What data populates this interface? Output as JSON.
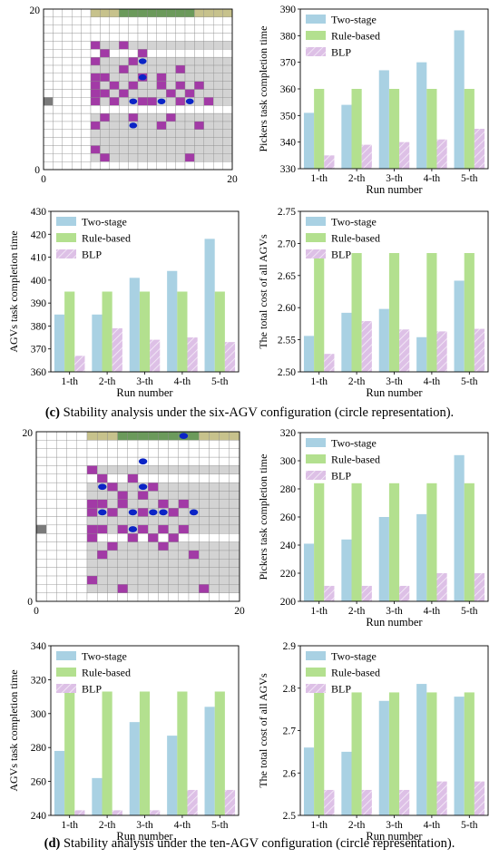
{
  "grids": [
    {
      "axis": {
        "xlim": [
          0,
          20
        ],
        "ylim": [
          0,
          20
        ],
        "xticks": [
          0,
          20
        ],
        "yticks": [
          0,
          20
        ]
      },
      "agv_count": 6,
      "colors": {
        "empty": "#ffffff",
        "shelf": "#d3d3d3",
        "storage": "#a23aa6",
        "station": "#c7c28c",
        "station_mid": "#6b9a5b",
        "depot": "#7a7a7a",
        "agv": "#0b24c6",
        "line": "#8a8a8a"
      }
    },
    {
      "axis": {
        "xlim": [
          0,
          20
        ],
        "ylim": [
          0,
          20
        ],
        "xticks": [
          0,
          20
        ],
        "yticks": [
          0,
          20
        ]
      },
      "agv_count": 10,
      "colors": {
        "empty": "#ffffff",
        "shelf": "#d3d3d3",
        "storage": "#a23aa6",
        "station": "#c7c28c",
        "station_mid": "#6b9a5b",
        "depot": "#7a7a7a",
        "agv": "#0b24c6",
        "line": "#8a8a8a"
      }
    }
  ],
  "chart_data": [
    {
      "type": "bar",
      "categories": [
        "1-th",
        "2-th",
        "3-th",
        "4-th",
        "5-th"
      ],
      "series": [
        {
          "name": "Two-stage",
          "values": [
            351,
            354,
            367,
            370,
            382
          ]
        },
        {
          "name": "Rule-based",
          "values": [
            360,
            360,
            360,
            360,
            360
          ]
        },
        {
          "name": "BLP",
          "values": [
            335,
            339,
            340,
            341,
            345
          ]
        }
      ],
      "xlabel": "Run number",
      "ylabel": "Pickers task completion time",
      "ylim": [
        330,
        390
      ],
      "yticks": [
        "330",
        "340",
        "350",
        "360",
        "370",
        "380",
        "390"
      ],
      "legend": "top-left",
      "grid": false
    },
    {
      "type": "bar",
      "categories": [
        "1-th",
        "2-th",
        "3-th",
        "4-th",
        "5-th"
      ],
      "series": [
        {
          "name": "Two-stage",
          "values": [
            385,
            385,
            401,
            404,
            418
          ]
        },
        {
          "name": "Rule-based",
          "values": [
            395,
            395,
            395,
            395,
            395
          ]
        },
        {
          "name": "BLP",
          "values": [
            367,
            379,
            374,
            375,
            373
          ]
        }
      ],
      "xlabel": "Run number",
      "ylabel": "AGVs task completion time",
      "ylim": [
        360,
        430
      ],
      "yticks": [
        "360",
        "370",
        "380",
        "390",
        "400",
        "410",
        "420",
        "430"
      ],
      "legend": "top-left",
      "grid": false
    },
    {
      "type": "bar",
      "categories": [
        "1-th",
        "2-th",
        "3-th",
        "4-th",
        "5-th"
      ],
      "series": [
        {
          "name": "Two-stage",
          "values": [
            2.556,
            2.592,
            2.598,
            2.554,
            2.642
          ]
        },
        {
          "name": "Rule-based",
          "values": [
            2.685,
            2.685,
            2.685,
            2.685,
            2.685
          ]
        },
        {
          "name": "BLP",
          "values": [
            2.528,
            2.579,
            2.566,
            2.563,
            2.567
          ]
        }
      ],
      "xlabel": "Run number",
      "ylabel": "The total cost of all AGVs",
      "ylim": [
        2.5,
        2.75
      ],
      "yticks": [
        "2.50",
        "2.55",
        "2.60",
        "2.65",
        "2.70",
        "2.75"
      ],
      "legend": "top-left",
      "grid": false
    },
    {
      "type": "bar",
      "categories": [
        "1-th",
        "2-th",
        "3-th",
        "4-th",
        "5-th"
      ],
      "series": [
        {
          "name": "Two-stage",
          "values": [
            241,
            244,
            260,
            262,
            304
          ]
        },
        {
          "name": "Rule-based",
          "values": [
            284,
            284,
            284,
            284,
            284
          ]
        },
        {
          "name": "BLP",
          "values": [
            211,
            211,
            211,
            220,
            220
          ]
        }
      ],
      "xlabel": "Run number",
      "ylabel": "Pickers task completion time",
      "ylim": [
        200,
        320
      ],
      "yticks": [
        "200",
        "220",
        "240",
        "260",
        "280",
        "300",
        "320"
      ],
      "legend": "top-left",
      "grid": false
    },
    {
      "type": "bar",
      "categories": [
        "1-th",
        "2-th",
        "3-th",
        "4-th",
        "5-th"
      ],
      "series": [
        {
          "name": "Two-stage",
          "values": [
            278,
            262,
            295,
            287,
            304
          ]
        },
        {
          "name": "Rule-based",
          "values": [
            313,
            313,
            313,
            313,
            313
          ]
        },
        {
          "name": "BLP",
          "values": [
            243,
            243,
            243,
            255,
            255
          ]
        }
      ],
      "xlabel": "Run number",
      "ylabel": "AGVs task completion time",
      "ylim": [
        240,
        340
      ],
      "yticks": [
        "240",
        "260",
        "280",
        "300",
        "320",
        "340"
      ],
      "legend": "top-left",
      "grid": false
    },
    {
      "type": "bar",
      "categories": [
        "1-th",
        "2-th",
        "3-th",
        "4-th",
        "5-th"
      ],
      "series": [
        {
          "name": "Two-stage",
          "values": [
            2.66,
            2.65,
            2.77,
            2.81,
            2.78
          ]
        },
        {
          "name": "Rule-based",
          "values": [
            2.79,
            2.79,
            2.79,
            2.79,
            2.79
          ]
        },
        {
          "name": "BLP",
          "values": [
            2.56,
            2.56,
            2.56,
            2.58,
            2.58
          ]
        }
      ],
      "xlabel": "Run number",
      "ylabel": "The total cost of all AGVs",
      "ylim": [
        2.5,
        2.9
      ],
      "yticks": [
        "2.5",
        "2.6",
        "2.7",
        "2.8",
        "2.9"
      ],
      "legend": "top-left",
      "grid": false
    }
  ],
  "colors": {
    "two_stage": "#a9d1e3",
    "rule_based": "#b3e08f",
    "blp": "#ddc0e6",
    "blp_hatch": "#ffffff"
  },
  "captions": [
    {
      "label": "(c)",
      "text": "Stability analysis under the six-AGV configuration (circle representation)."
    },
    {
      "label": "(d)",
      "text": "Stability analysis under the ten-AGV configuration (circle representation)."
    }
  ]
}
